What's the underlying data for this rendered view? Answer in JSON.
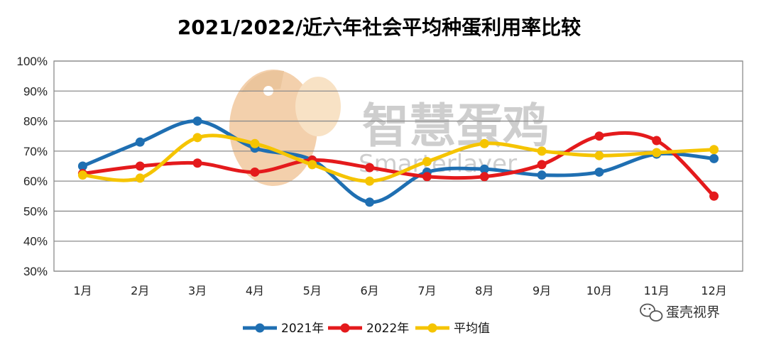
{
  "chart_data": {
    "type": "line",
    "title": "2021/2022/近六年社会平均种蛋利用率比较",
    "categories": [
      "1月",
      "2月",
      "3月",
      "4月",
      "5月",
      "6月",
      "7月",
      "8月",
      "9月",
      "10月",
      "11月",
      "12月"
    ],
    "y_ticks": [
      "30%",
      "40%",
      "50%",
      "60%",
      "70%",
      "80%",
      "90%",
      "100%"
    ],
    "ylim": [
      30,
      100
    ],
    "grid": "horizontal",
    "legend_position": "bottom",
    "series": [
      {
        "name": "2021年",
        "color": "#1f6fb2",
        "values": [
          65,
          73,
          80,
          71,
          67,
          53,
          63,
          64,
          62,
          63,
          69,
          67.5
        ]
      },
      {
        "name": "2022年",
        "color": "#e41a1c",
        "values": [
          62.5,
          65,
          66,
          63,
          67,
          64.5,
          61.5,
          61.5,
          65.5,
          75,
          73.5,
          55
        ]
      },
      {
        "name": "平均值",
        "color": "#f5c400",
        "values": [
          62,
          61,
          74.5,
          72.5,
          65.5,
          60,
          66.5,
          72.5,
          70,
          68.5,
          69.5,
          70.5
        ]
      }
    ]
  },
  "watermark": {
    "text": "智慧蛋鸡",
    "subtext": "Smarterlayer"
  },
  "source": {
    "label": "蛋壳视界",
    "icon": "wechat-icon"
  }
}
